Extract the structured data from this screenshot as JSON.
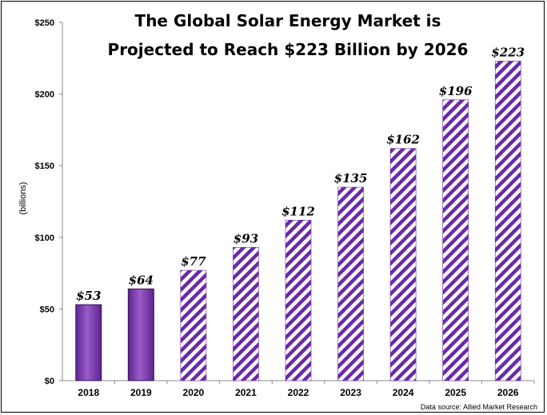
{
  "chart_data": {
    "type": "bar",
    "title_lines": [
      "The Global Solar Energy Market is",
      "Projected to Reach $223 Billion by 2026"
    ],
    "ylabel": "(billions)",
    "xlabel": "",
    "categories": [
      "2018",
      "2019",
      "2020",
      "2021",
      "2022",
      "2023",
      "2024",
      "2025",
      "2026"
    ],
    "values": [
      53,
      64,
      77,
      93,
      112,
      135,
      162,
      196,
      223
    ],
    "data_labels": [
      "$53",
      "$64",
      "$77",
      "$93",
      "$112",
      "$135",
      "$162",
      "$196",
      "$223"
    ],
    "projected_from_index": 2,
    "ylim": [
      0,
      250
    ],
    "yticks": [
      0,
      50,
      100,
      150,
      200,
      250
    ],
    "ytick_labels": [
      "$0",
      "$50",
      "$100",
      "$150",
      "$200",
      "$250"
    ],
    "grid": false,
    "legend": "none",
    "source_note": "Data source:  Allied Market Research",
    "colors": {
      "solid_fill": "#7030a0",
      "solid_highlight": "#9a5cc8",
      "stripe": "#6a2aa8",
      "stripe_bg": "#ffffff",
      "axis": "#888888"
    }
  }
}
